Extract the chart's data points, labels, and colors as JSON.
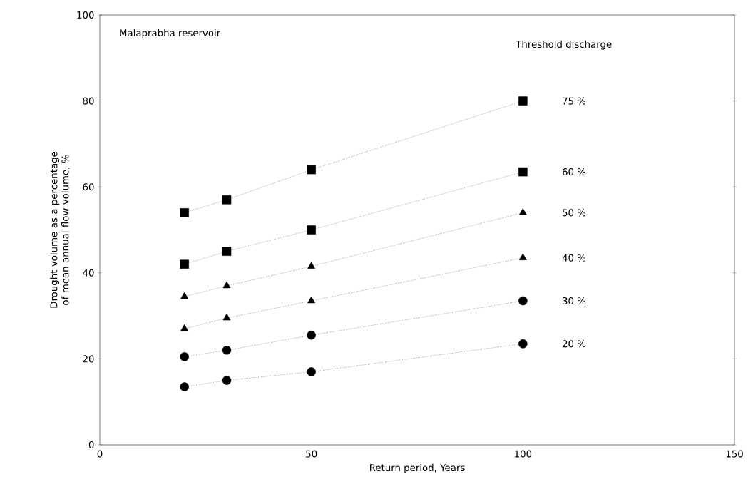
{
  "chart_data": {
    "type": "line",
    "title": "Malaprabha reservoir",
    "xlabel": "Return period, Years",
    "ylabel": "Drought volume as a percentage of mean annual flow volume, %",
    "annotations": [
      "Threshold discharge"
    ],
    "x": [
      20,
      30,
      50,
      100
    ],
    "xlim": [
      0,
      150
    ],
    "xticks": [
      0,
      50,
      100,
      150
    ],
    "ylim": [
      0,
      100
    ],
    "yticks": [
      0,
      20,
      40,
      60,
      80,
      100
    ],
    "grid": false,
    "line_style": "dotted",
    "series": [
      {
        "name": "75 %",
        "color": "#000000",
        "marker": "square",
        "values": [
          54,
          57,
          64,
          80
        ]
      },
      {
        "name": "60 %",
        "color": "#000000",
        "marker": "square",
        "values": [
          42,
          45,
          50,
          63.5
        ]
      },
      {
        "name": "50 %",
        "color": "#000000",
        "marker": "triangle",
        "values": [
          34.5,
          37,
          41.5,
          54
        ]
      },
      {
        "name": "40 %",
        "color": "#000000",
        "marker": "triangle",
        "values": [
          27,
          29.5,
          33.5,
          43.5
        ]
      },
      {
        "name": "30 %",
        "color": "#000000",
        "marker": "circle",
        "values": [
          20.5,
          22,
          25.5,
          33.5
        ]
      },
      {
        "name": "20 %",
        "color": "#000000",
        "marker": "circle",
        "values": [
          13.5,
          15,
          17,
          23.5
        ]
      }
    ]
  }
}
